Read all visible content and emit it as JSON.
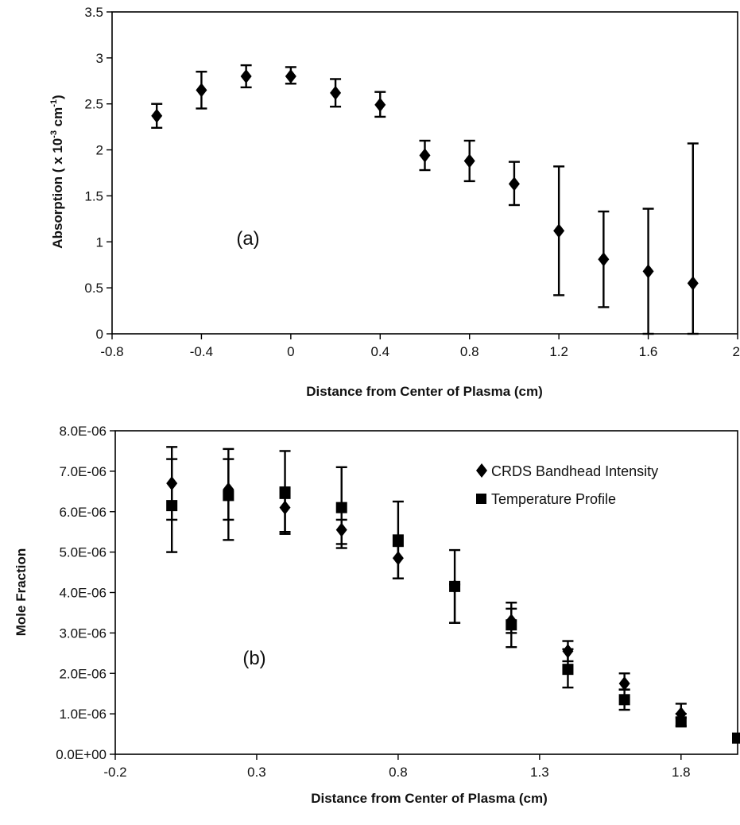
{
  "chart_data": [
    {
      "type": "scatter",
      "panel_label": "(a)",
      "xlabel": "Distance from Center of Plasma (cm)",
      "ylabel": "Absorption ( x 10-3 cm-1)",
      "ylabel_parts": {
        "prefix": "Absorption ( x 10",
        "exp1": "-3",
        "mid": " cm",
        "exp2": "-1",
        "suffix": ")"
      },
      "xlim": [
        -0.8,
        2
      ],
      "ylim": [
        0,
        3.5
      ],
      "xticks": [
        "-0.8",
        "-0.4",
        "0",
        "0.4",
        "0.8",
        "1.2",
        "1.6",
        "2"
      ],
      "yticks": [
        "0",
        "0.5",
        "1",
        "1.5",
        "2",
        "2.5",
        "3",
        "3.5"
      ],
      "xtick_values": [
        -0.8,
        -0.4,
        0,
        0.4,
        0.8,
        1.2,
        1.6,
        2
      ],
      "ytick_values": [
        0,
        0.5,
        1,
        1.5,
        2,
        2.5,
        3,
        3.5
      ],
      "grid": false,
      "series": [
        {
          "marker": "diamond",
          "x": [
            -0.6,
            -0.4,
            -0.2,
            0,
            0.2,
            0.4,
            0.6,
            0.8,
            1.0,
            1.2,
            1.4,
            1.6,
            1.8
          ],
          "y": [
            2.37,
            2.65,
            2.8,
            2.8,
            2.62,
            2.49,
            1.94,
            1.88,
            1.63,
            1.12,
            0.81,
            0.68,
            0.55
          ],
          "err_low": [
            2.24,
            2.45,
            2.68,
            2.72,
            2.47,
            2.36,
            1.78,
            1.66,
            1.4,
            0.42,
            0.29,
            0.0,
            0.0
          ],
          "err_high": [
            2.5,
            2.85,
            2.92,
            2.9,
            2.77,
            2.63,
            2.1,
            2.1,
            1.87,
            1.82,
            1.33,
            1.36,
            2.07
          ]
        }
      ]
    },
    {
      "type": "scatter",
      "panel_label": "(b)",
      "xlabel": "Distance from Center of Plasma (cm)",
      "ylabel": "Mole Fraction",
      "xlim": [
        -0.2,
        2.0
      ],
      "ylim": [
        0,
        8e-06
      ],
      "xticks": [
        "-0.2",
        "0.3",
        "0.8",
        "1.3",
        "1.8"
      ],
      "yticks": [
        "0.0E+00",
        "1.0E-06",
        "2.0E-06",
        "3.0E-06",
        "4.0E-06",
        "5.0E-06",
        "6.0E-06",
        "7.0E-06",
        "8.0E-06"
      ],
      "xtick_values": [
        -0.2,
        0.3,
        0.8,
        1.3,
        1.8
      ],
      "ytick_values": [
        0,
        1e-06,
        2e-06,
        3e-06,
        4e-06,
        5e-06,
        6e-06,
        7e-06,
        8e-06
      ],
      "grid": false,
      "legend_position": "top-right",
      "series": [
        {
          "name": "CRDS Bandhead Intensity",
          "marker": "diamond",
          "x": [
            0,
            0.2,
            0.4,
            0.6,
            0.8,
            1.0,
            1.2,
            1.4,
            1.6,
            1.8
          ],
          "y": [
            6.7e-06,
            6.55e-06,
            6.1e-06,
            5.55e-06,
            4.85e-06,
            4.15e-06,
            3.3e-06,
            2.55e-06,
            1.75e-06,
            1e-06
          ],
          "err_low": [
            5.8e-06,
            5.8e-06,
            5.5e-06,
            5.2e-06,
            4.35e-06,
            3.25e-06,
            3e-06,
            2.3e-06,
            1.6e-06,
            9e-07
          ],
          "err_high": [
            7.6e-06,
            7.55e-06,
            6.6e-06,
            5.8e-06,
            5.15e-06,
            4.2e-06,
            3.75e-06,
            2.8e-06,
            2e-06,
            1.25e-06
          ]
        },
        {
          "name": "Temperature Profile",
          "marker": "square",
          "x": [
            0,
            0.2,
            0.4,
            0.6,
            0.8,
            1.0,
            1.2,
            1.4,
            1.6,
            1.8,
            2.0
          ],
          "y": [
            6.15e-06,
            6.4e-06,
            6.45e-06,
            6.1e-06,
            5.3e-06,
            4.15e-06,
            3.2e-06,
            2.1e-06,
            1.35e-06,
            8e-07,
            4e-07
          ],
          "err_low": [
            5e-06,
            5.3e-06,
            5.45e-06,
            5.1e-06,
            4.35e-06,
            3.25e-06,
            2.65e-06,
            1.65e-06,
            1.1e-06,
            7e-07,
            null
          ],
          "err_high": [
            7.3e-06,
            7.3e-06,
            7.5e-06,
            7.1e-06,
            6.25e-06,
            5.05e-06,
            3.6e-06,
            2.6e-06,
            1.6e-06,
            1e-06,
            null
          ]
        }
      ]
    }
  ]
}
